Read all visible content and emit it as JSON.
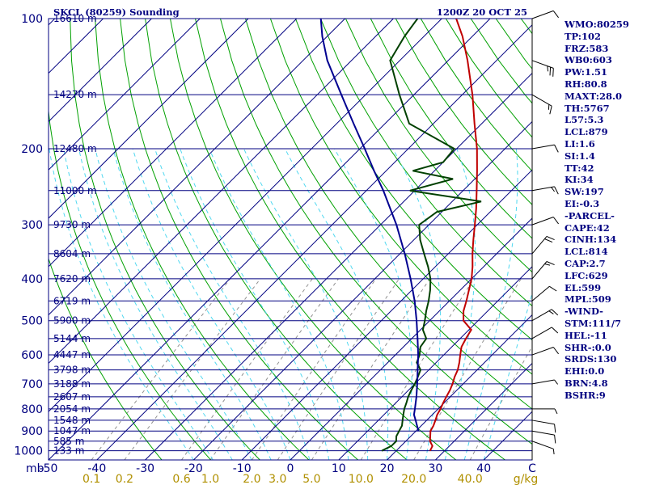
{
  "chart_data": {
    "type": "skew-t sounding",
    "title": "SKCL (80259) Sounding",
    "time": "1200Z 20 OCT 25",
    "pressure_unit_label": "mb",
    "mixing_ratio_unit_label": "g/kg",
    "temperature_range_c": [
      -50,
      50
    ],
    "pressure_range_mb": [
      100,
      1050
    ],
    "pressure_levels": [
      {
        "p": 100,
        "label": "100",
        "height": "16610 m"
      },
      {
        "p": 150,
        "label": "",
        "height": "14270 m"
      },
      {
        "p": 200,
        "label": "200",
        "height": "12480 m"
      },
      {
        "p": 250,
        "label": "",
        "height": "11000 m"
      },
      {
        "p": 300,
        "label": "300",
        "height": "9730 m"
      },
      {
        "p": 350,
        "label": "",
        "height": "8604 m"
      },
      {
        "p": 400,
        "label": "400",
        "height": "7620 m"
      },
      {
        "p": 450,
        "label": "",
        "height": "6719 m"
      },
      {
        "p": 500,
        "label": "500",
        "height": "5900 m"
      },
      {
        "p": 550,
        "label": "",
        "height": "5144 m"
      },
      {
        "p": 600,
        "label": "600",
        "height": "4447 m"
      },
      {
        "p": 650,
        "label": "",
        "height": "3798 m"
      },
      {
        "p": 700,
        "label": "700",
        "height": "3188 m"
      },
      {
        "p": 750,
        "label": "",
        "height": "2607 m"
      },
      {
        "p": 800,
        "label": "800",
        "height": "2054 m"
      },
      {
        "p": 850,
        "label": "",
        "height": "1548 m"
      },
      {
        "p": 900,
        "label": "900",
        "height": "1047 m"
      },
      {
        "p": 950,
        "label": "",
        "height": "585 m"
      },
      {
        "p": 1000,
        "label": "1000",
        "height": "133 m"
      }
    ],
    "temperature_ticks": [
      "-50",
      "-40",
      "-30",
      "-20",
      "-10",
      "0",
      "10",
      "20",
      "30",
      "40",
      "C"
    ],
    "temperature_tick_values": [
      -50,
      -40,
      -30,
      -20,
      -10,
      0,
      10,
      20,
      30,
      40,
      50
    ],
    "mixing_ratio_labels": [
      {
        "w": 0.1,
        "label": "0.1"
      },
      {
        "w": 0.2,
        "label": "0.2"
      },
      {
        "w": 0.6,
        "label": "0.6"
      },
      {
        "w": 1.0,
        "label": "1.0"
      },
      {
        "w": 2.0,
        "label": "2.0"
      },
      {
        "w": 3.0,
        "label": "3.0"
      },
      {
        "w": 5.0,
        "label": "5.0"
      },
      {
        "w": 10.0,
        "label": "10.0"
      },
      {
        "w": 20.0,
        "label": "20.0"
      },
      {
        "w": 40.0,
        "label": "40.0"
      }
    ],
    "series": [
      {
        "name": "temperature",
        "color": "#c00000",
        "points": [
          [
            1000,
            27
          ],
          [
            975,
            26.5
          ],
          [
            950,
            25
          ],
          [
            925,
            24
          ],
          [
            900,
            23
          ],
          [
            875,
            22.5
          ],
          [
            850,
            21.8
          ],
          [
            825,
            21
          ],
          [
            800,
            20.5
          ],
          [
            775,
            19.8
          ],
          [
            750,
            19.2
          ],
          [
            725,
            18.6
          ],
          [
            700,
            17.8
          ],
          [
            675,
            16.8
          ],
          [
            650,
            16
          ],
          [
            625,
            14.8
          ],
          [
            600,
            13.4
          ],
          [
            575,
            12
          ],
          [
            550,
            11.2
          ],
          [
            525,
            10.5
          ],
          [
            500,
            7
          ],
          [
            475,
            5
          ],
          [
            450,
            3.5
          ],
          [
            425,
            1.8
          ],
          [
            400,
            0
          ],
          [
            375,
            -2.3
          ],
          [
            350,
            -5
          ],
          [
            325,
            -7.7
          ],
          [
            300,
            -10.5
          ],
          [
            275,
            -13.6
          ],
          [
            250,
            -17.2
          ],
          [
            225,
            -21.2
          ],
          [
            200,
            -25.8
          ],
          [
            175,
            -31.5
          ],
          [
            150,
            -37.9
          ],
          [
            125,
            -46
          ],
          [
            110,
            -52
          ],
          [
            100,
            -57
          ]
        ]
      },
      {
        "name": "dew point",
        "color": "#004000",
        "points": [
          [
            1000,
            17
          ],
          [
            975,
            18
          ],
          [
            950,
            18
          ],
          [
            925,
            17
          ],
          [
            900,
            16.5
          ],
          [
            875,
            16
          ],
          [
            850,
            15
          ],
          [
            825,
            14
          ],
          [
            800,
            13
          ],
          [
            775,
            12.2
          ],
          [
            750,
            11.3
          ],
          [
            725,
            10.6
          ],
          [
            700,
            10
          ],
          [
            675,
            9.2
          ],
          [
            650,
            8.3
          ],
          [
            625,
            6
          ],
          [
            600,
            5
          ],
          [
            575,
            3.5
          ],
          [
            550,
            3
          ],
          [
            525,
            0.5
          ],
          [
            500,
            -1
          ],
          [
            475,
            -2.7
          ],
          [
            450,
            -4.3
          ],
          [
            425,
            -6.2
          ],
          [
            400,
            -8.5
          ],
          [
            375,
            -11.5
          ],
          [
            350,
            -15
          ],
          [
            325,
            -18.7
          ],
          [
            300,
            -22
          ],
          [
            280,
            -21
          ],
          [
            265,
            -14
          ],
          [
            250,
            -31
          ],
          [
            235,
            -24.5
          ],
          [
            225,
            -34.5
          ],
          [
            215,
            -30
          ],
          [
            200,
            -30.5
          ],
          [
            175,
            -45
          ],
          [
            150,
            -53
          ],
          [
            125,
            -62
          ],
          [
            110,
            -64
          ],
          [
            100,
            -65
          ]
        ]
      },
      {
        "name": "parcel",
        "color": "#000090",
        "points": [
          [
            900,
            20.5
          ],
          [
            850,
            17.7
          ],
          [
            825,
            16.2
          ],
          [
            800,
            15.2
          ],
          [
            750,
            13
          ],
          [
            700,
            10.5
          ],
          [
            650,
            7.7
          ],
          [
            600,
            4.7
          ],
          [
            550,
            1.2
          ],
          [
            500,
            -2.7
          ],
          [
            450,
            -7.2
          ],
          [
            400,
            -12.6
          ],
          [
            350,
            -19
          ],
          [
            300,
            -26.7
          ],
          [
            250,
            -36.5
          ],
          [
            225,
            -42.5
          ],
          [
            200,
            -49
          ],
          [
            175,
            -56.5
          ],
          [
            150,
            -65
          ],
          [
            125,
            -75
          ],
          [
            110,
            -81
          ],
          [
            100,
            -85
          ]
        ]
      }
    ],
    "wind_barbs": [
      {
        "p": 950,
        "dir": 110,
        "kt": 5
      },
      {
        "p": 900,
        "dir": 100,
        "kt": 10
      },
      {
        "p": 850,
        "dir": 100,
        "kt": 10
      },
      {
        "p": 800,
        "dir": 90,
        "kt": 5
      },
      {
        "p": 700,
        "dir": 80,
        "kt": 5
      },
      {
        "p": 600,
        "dir": 70,
        "kt": 10
      },
      {
        "p": 550,
        "dir": 60,
        "kt": 10
      },
      {
        "p": 500,
        "dir": 60,
        "kt": 15
      },
      {
        "p": 450,
        "dir": 50,
        "kt": 10
      },
      {
        "p": 400,
        "dir": 40,
        "kt": 15
      },
      {
        "p": 350,
        "dir": 40,
        "kt": 20
      },
      {
        "p": 300,
        "dir": 70,
        "kt": 10
      },
      {
        "p": 250,
        "dir": 80,
        "kt": 15
      },
      {
        "p": 200,
        "dir": 80,
        "kt": 10
      },
      {
        "p": 150,
        "dir": 120,
        "kt": 15
      },
      {
        "p": 125,
        "dir": 110,
        "kt": 25
      },
      {
        "p": 100,
        "dir": 70,
        "kt": 10
      }
    ],
    "indices": [
      "WMO:80259",
      "TP:102",
      "FRZ:583",
      "WB0:603",
      "PW:1.51",
      "RH:80.8",
      "MAXT:28.0",
      "TH:5767",
      "L57:5.3",
      "LCL:879",
      "LI:1.6",
      "SI:1.4",
      "TT:42",
      "KI:34",
      "SW:197",
      "EI:-0.3",
      "-PARCEL-",
      "CAPE:42",
      "CINH:134",
      "LCL:814",
      "CAP:2.7",
      "LFC:629",
      "EL:599",
      "MPL:509",
      "-WIND-",
      "STM:111/7",
      "HEL:-11",
      "SHR-:0.0",
      "SRDS:130",
      "EHI:0.0",
      "BRN:4.8",
      "BSHR:9"
    ],
    "colors": {
      "isobar": "#000080",
      "isotherm": "#000080",
      "dry_adiabat": "#00a000",
      "moist_adiabat": "#50d8f0",
      "mixing_ratio": "#909090",
      "tick_label": "#000080",
      "mixing_label": "#b09000",
      "wind_staff": "#000000"
    }
  }
}
